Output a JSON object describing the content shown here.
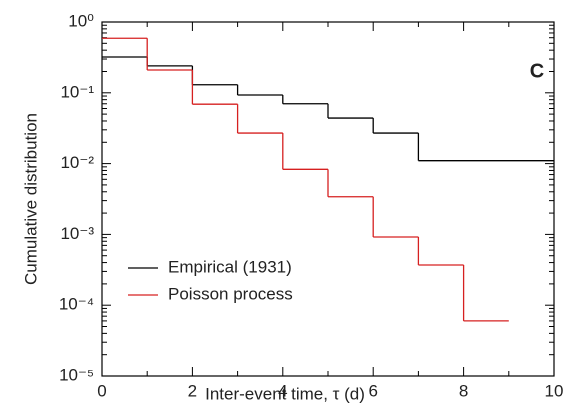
{
  "chart_data": {
    "type": "step",
    "panel_label": "C",
    "xlabel": "Inter-event time, τ (d)",
    "ylabel": "Cumulative distribution",
    "xlim": [
      0,
      10
    ],
    "xticks": [
      0,
      2,
      4,
      6,
      8,
      10
    ],
    "ylim": [
      1e-05,
      1
    ],
    "log_y": true,
    "yticks": [
      {
        "value": 1,
        "label": "10⁰"
      },
      {
        "value": 0.1,
        "label": "10⁻¹"
      },
      {
        "value": 0.01,
        "label": "10⁻²"
      },
      {
        "value": 0.001,
        "label": "10⁻³"
      },
      {
        "value": 0.0001,
        "label": "10⁻⁴"
      },
      {
        "value": 1e-05,
        "label": "10⁻⁵"
      }
    ],
    "legend": "lower left",
    "series": [
      {
        "name": "Empirical (1931)",
        "color": "#000000",
        "bins": [
          0,
          1,
          2,
          3,
          4,
          5,
          6,
          7,
          10
        ],
        "values": [
          0.32,
          0.24,
          0.13,
          0.093,
          0.07,
          0.044,
          0.027,
          0.011
        ]
      },
      {
        "name": "Poisson process",
        "color": "#d62020",
        "bins": [
          0,
          1,
          2,
          3,
          4,
          5,
          6,
          7,
          8,
          9
        ],
        "values": [
          0.59,
          0.21,
          0.069,
          0.027,
          0.0083,
          0.0034,
          0.00092,
          0.00037,
          6e-05
        ]
      }
    ]
  }
}
